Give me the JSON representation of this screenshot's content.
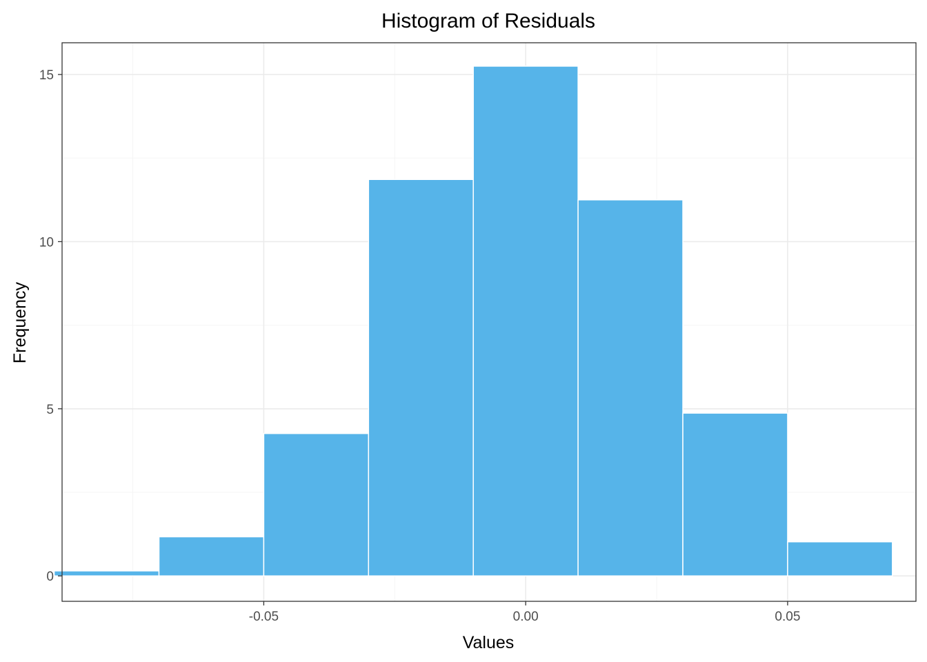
{
  "chart_data": {
    "type": "bar",
    "title": "Histogram of Residuals",
    "xlabel": "Values",
    "ylabel": "Frequency",
    "xlim": [
      -0.0885,
      0.0745
    ],
    "ylim": [
      -0.76,
      15.95
    ],
    "x_ticks": [
      -0.05,
      0.0,
      0.05
    ],
    "x_tick_labels": [
      "-0.05",
      "0.00",
      "0.05"
    ],
    "y_ticks": [
      0,
      5,
      10,
      15
    ],
    "y_tick_labels": [
      "0",
      "5",
      "10",
      "15"
    ],
    "grid": true,
    "legend": "none",
    "bin_edges": [
      -0.09,
      -0.07,
      -0.05,
      -0.03,
      -0.01,
      0.01,
      0.03,
      0.05,
      0.07
    ],
    "values": [
      0.15,
      1.17,
      4.26,
      11.86,
      15.25,
      11.25,
      4.87,
      1.02
    ],
    "colors": {
      "bar_fill": "#56B4E9",
      "bar_outline": "#ffffff",
      "grid_major": "#ebebeb",
      "grid_minor": "#f5f5f5",
      "panel_border": "#333333",
      "tick_text": "#4d4d4d"
    }
  }
}
